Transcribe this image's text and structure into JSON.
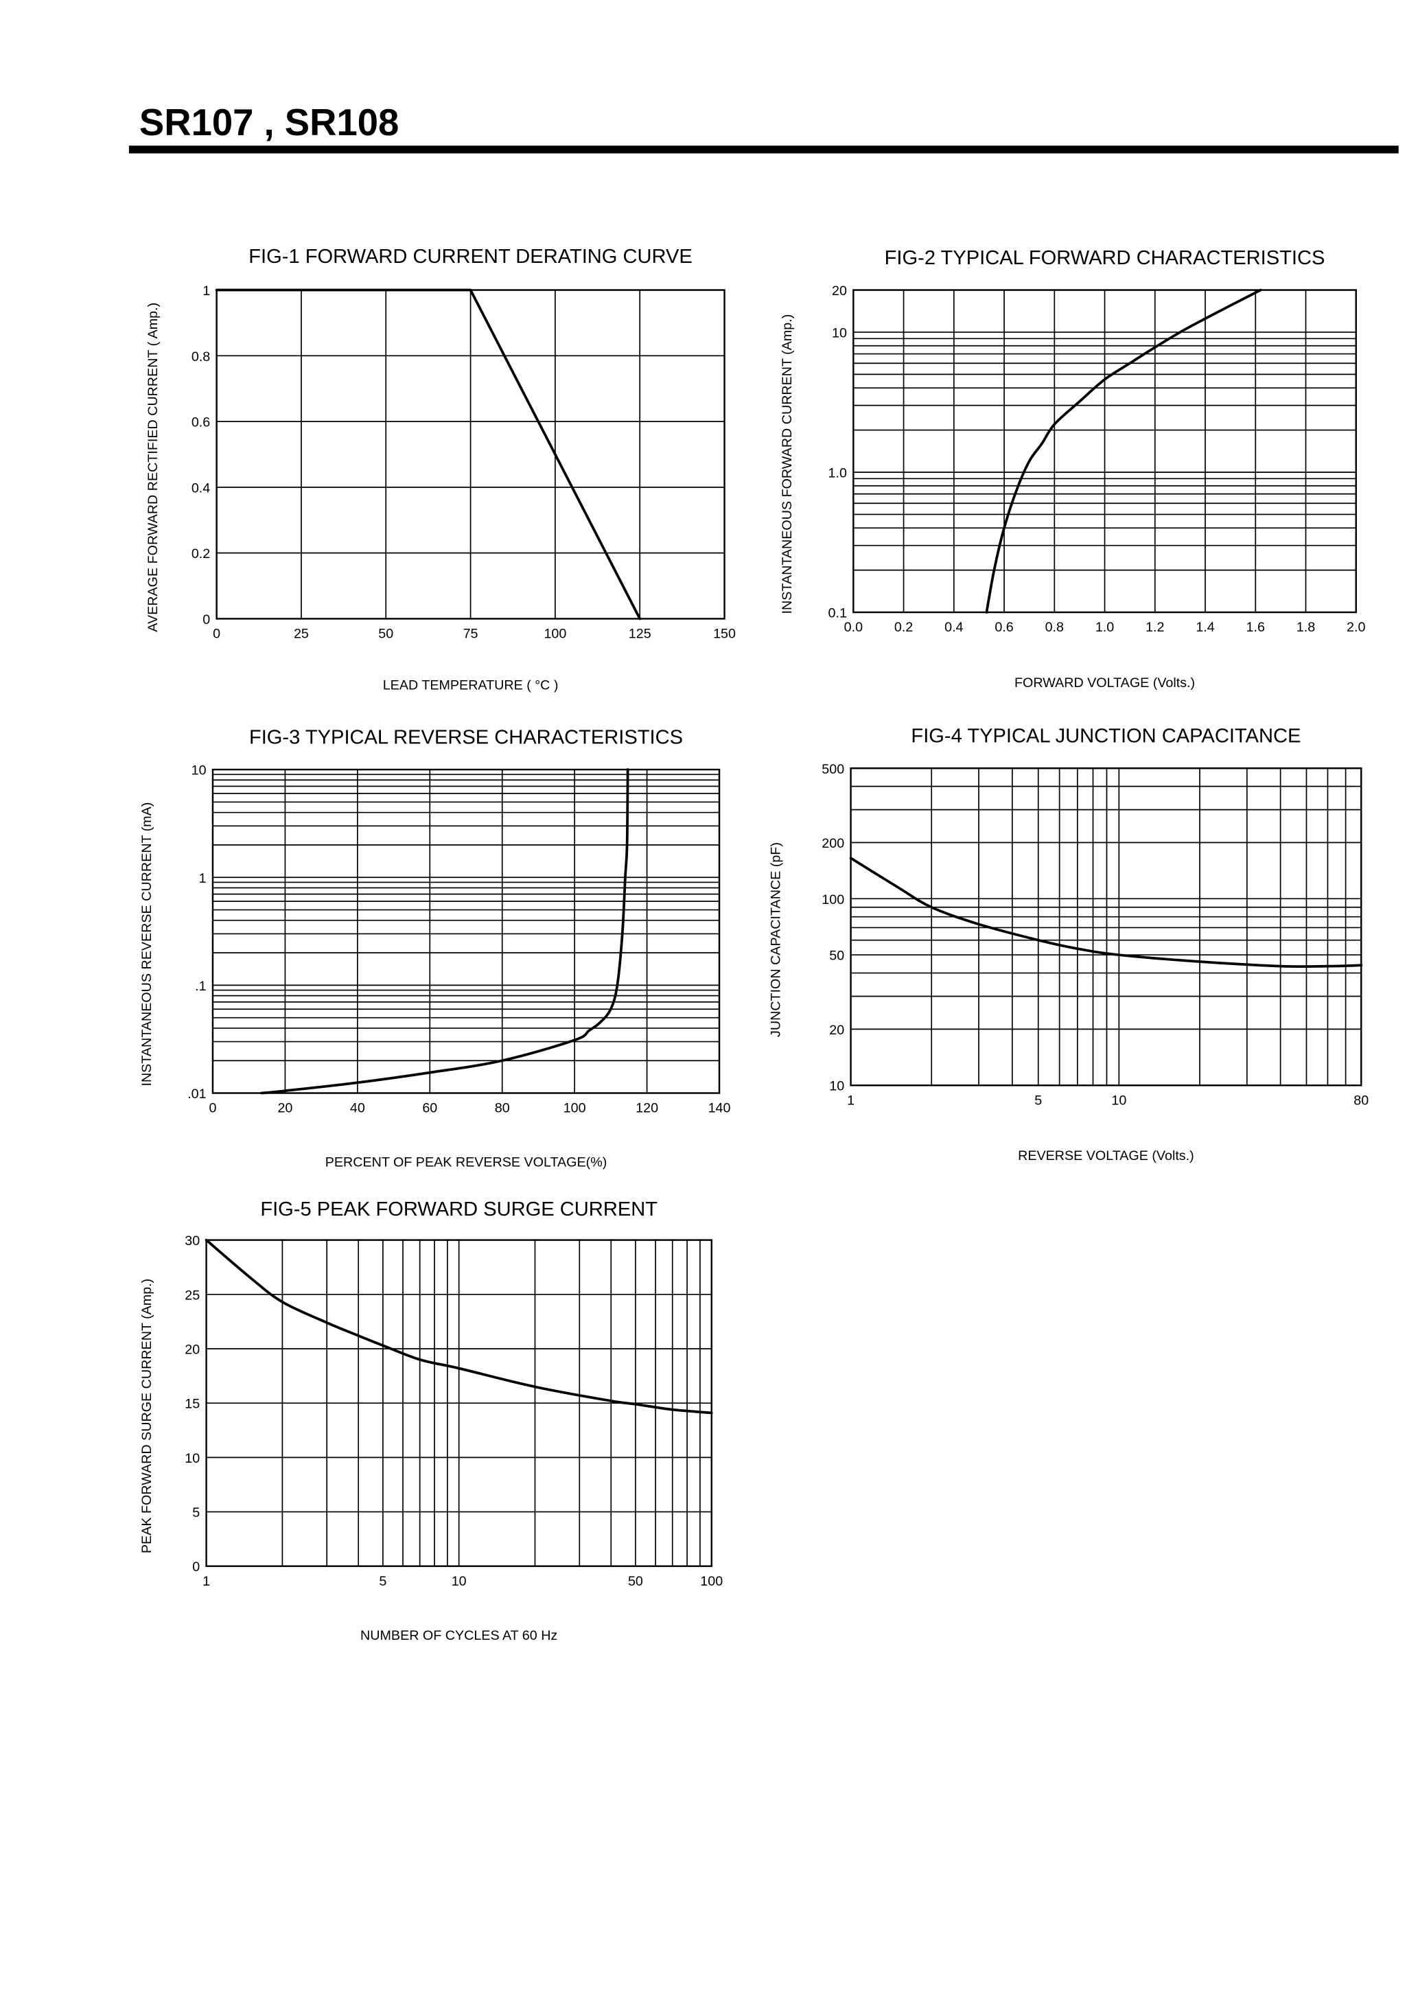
{
  "header": {
    "title": "SR107 , SR108"
  },
  "chart_data": [
    {
      "type": "line",
      "title": "FIG-1 FORWARD CURRENT DERATING CURVE",
      "xlabel": "LEAD TEMPERATURE ( °C )",
      "ylabel": "AVERAGE FORWARD RECTIFIED CURRENT ( Amp.)",
      "xscale": "linear",
      "yscale": "linear",
      "xlim": [
        0,
        150
      ],
      "ylim": [
        0,
        1
      ],
      "grid": true,
      "xgrid": [
        25,
        50,
        75,
        100,
        125
      ],
      "ygrid": [
        0.2,
        0.4,
        0.6,
        0.8
      ],
      "xticks": [
        {
          "v": 0,
          "label": "0"
        },
        {
          "v": 25,
          "label": "25"
        },
        {
          "v": 50,
          "label": "50"
        },
        {
          "v": 75,
          "label": "75"
        },
        {
          "v": 100,
          "label": "100"
        },
        {
          "v": 125,
          "label": "125"
        },
        {
          "v": 150,
          "label": "150"
        }
      ],
      "yticks": [
        {
          "v": 0,
          "label": "0"
        },
        {
          "v": 0.2,
          "label": "0.2"
        },
        {
          "v": 0.4,
          "label": "0.4"
        },
        {
          "v": 0.6,
          "label": "0.6"
        },
        {
          "v": 0.8,
          "label": "0.8"
        },
        {
          "v": 1,
          "label": "1"
        }
      ],
      "x": [
        0,
        75,
        125
      ],
      "y": [
        1,
        1,
        0
      ]
    },
    {
      "type": "line",
      "title": "FIG-2 TYPICAL FORWARD CHARACTERISTICS",
      "xlabel": "FORWARD VOLTAGE (Volts.)",
      "ylabel": "INSTANTANEOUS FORWARD CURRENT (Amp.)",
      "xscale": "linear",
      "yscale": "log",
      "xlim": [
        0,
        2.0
      ],
      "ylim": [
        0.1,
        20
      ],
      "grid": true,
      "xgrid": [
        0.2,
        0.4,
        0.6,
        0.8,
        1.0,
        1.2,
        1.4,
        1.6,
        1.8
      ],
      "ygrid": [
        0.2,
        0.3,
        0.4,
        0.5,
        0.6,
        0.7,
        0.8,
        0.9,
        1,
        2,
        3,
        4,
        5,
        6,
        7,
        8,
        9,
        10
      ],
      "xticks": [
        {
          "v": 0,
          "label": "0.0"
        },
        {
          "v": 0.2,
          "label": "0.2"
        },
        {
          "v": 0.4,
          "label": "0.4"
        },
        {
          "v": 0.6,
          "label": "0.6"
        },
        {
          "v": 0.8,
          "label": "0.8"
        },
        {
          "v": 1.0,
          "label": "1.0"
        },
        {
          "v": 1.2,
          "label": "1.2"
        },
        {
          "v": 1.4,
          "label": "1.4"
        },
        {
          "v": 1.6,
          "label": "1.6"
        },
        {
          "v": 1.8,
          "label": "1.8"
        },
        {
          "v": 2.0,
          "label": "2.0"
        }
      ],
      "yticks": [
        {
          "v": 0.1,
          "label": "0.1"
        },
        {
          "v": 1,
          "label": "1.0"
        },
        {
          "v": 10,
          "label": "10"
        },
        {
          "v": 20,
          "label": "20"
        }
      ],
      "x": [
        0.53,
        0.56,
        0.6,
        0.65,
        0.7,
        0.75,
        0.8,
        0.9,
        1.0,
        1.1,
        1.2,
        1.3,
        1.4,
        1.5,
        1.62
      ],
      "y": [
        0.1,
        0.2,
        0.4,
        0.75,
        1.2,
        1.6,
        2.2,
        3.2,
        4.6,
        6.0,
        7.8,
        10,
        12.5,
        15.5,
        20
      ]
    },
    {
      "type": "line",
      "title": "FIG-3 TYPICAL REVERSE CHARACTERISTICS",
      "xlabel": "PERCENT OF PEAK REVERSE VOLTAGE(%)",
      "ylabel": "INSTANTANEOUS REVERSE CURRENT (mA)",
      "xscale": "linear",
      "yscale": "log",
      "xlim": [
        0,
        140
      ],
      "ylim": [
        0.01,
        10
      ],
      "grid": true,
      "xgrid": [
        20,
        40,
        60,
        80,
        100,
        120
      ],
      "ygrid": [
        0.02,
        0.03,
        0.04,
        0.05,
        0.06,
        0.07,
        0.08,
        0.09,
        0.1,
        0.2,
        0.3,
        0.4,
        0.5,
        0.6,
        0.7,
        0.8,
        0.9,
        1,
        2,
        3,
        4,
        5,
        6,
        7,
        8,
        9
      ],
      "xticks": [
        {
          "v": 0,
          "label": "0"
        },
        {
          "v": 20,
          "label": "20"
        },
        {
          "v": 40,
          "label": "40"
        },
        {
          "v": 60,
          "label": "60"
        },
        {
          "v": 80,
          "label": "80"
        },
        {
          "v": 100,
          "label": "100"
        },
        {
          "v": 120,
          "label": "120"
        },
        {
          "v": 140,
          "label": "140"
        }
      ],
      "yticks": [
        {
          "v": 0.01,
          "label": ".01"
        },
        {
          "v": 0.1,
          "label": ".1"
        },
        {
          "v": 1,
          "label": "1"
        },
        {
          "v": 10,
          "label": "10"
        }
      ],
      "x": [
        13.5,
        20,
        40,
        60,
        80,
        100,
        104,
        107,
        110,
        111.8,
        113.2,
        114,
        114.5,
        114.7
      ],
      "y": [
        0.01,
        0.0105,
        0.0125,
        0.0155,
        0.02,
        0.031,
        0.038,
        0.045,
        0.06,
        0.1,
        0.3,
        1,
        2,
        10
      ]
    },
    {
      "type": "line",
      "title": "FIG-4 TYPICAL JUNCTION CAPACITANCE",
      "xlabel": "REVERSE VOLTAGE (Volts.)",
      "ylabel": "JUNCTION CAPACITANCE (pF)",
      "xscale": "log",
      "yscale": "log",
      "xlim": [
        1,
        80
      ],
      "ylim": [
        10,
        500
      ],
      "grid": true,
      "xgrid": [
        2,
        3,
        4,
        5,
        6,
        7,
        8,
        9,
        10,
        20,
        30,
        40,
        50,
        60,
        70
      ],
      "ygrid": [
        20,
        30,
        40,
        50,
        60,
        70,
        80,
        90,
        100,
        200,
        300,
        400
      ],
      "xticks": [
        {
          "v": 1,
          "label": "1"
        },
        {
          "v": 5,
          "label": "5"
        },
        {
          "v": 10,
          "label": "10"
        },
        {
          "v": 80,
          "label": "80"
        }
      ],
      "yticks": [
        {
          "v": 10,
          "label": "10"
        },
        {
          "v": 20,
          "label": "20"
        },
        {
          "v": 50,
          "label": "50"
        },
        {
          "v": 100,
          "label": "100"
        },
        {
          "v": 200,
          "label": "200"
        },
        {
          "v": 500,
          "label": "500"
        }
      ],
      "x": [
        1,
        1.5,
        2,
        3,
        5,
        7,
        10,
        20,
        40,
        60,
        80
      ],
      "y": [
        165,
        115,
        90,
        73,
        60,
        54,
        50,
        46,
        43.5,
        43.5,
        44
      ]
    },
    {
      "type": "line",
      "title": "FIG-5 PEAK FORWARD SURGE CURRENT",
      "xlabel": "NUMBER OF CYCLES AT 60 Hz",
      "ylabel": "PEAK FORWARD SURGE CURRENT (Amp.)",
      "xscale": "log",
      "yscale": "linear",
      "xlim": [
        1,
        100
      ],
      "ylim": [
        0,
        30
      ],
      "grid": true,
      "xgrid": [
        2,
        3,
        4,
        5,
        6,
        7,
        8,
        9,
        10,
        20,
        30,
        40,
        50,
        60,
        70,
        80,
        90
      ],
      "ygrid": [
        5,
        10,
        15,
        20,
        25
      ],
      "xticks": [
        {
          "v": 1,
          "label": "1"
        },
        {
          "v": 5,
          "label": "5"
        },
        {
          "v": 10,
          "label": "10"
        },
        {
          "v": 50,
          "label": "50"
        },
        {
          "v": 100,
          "label": "100"
        }
      ],
      "yticks": [
        {
          "v": 0,
          "label": "0"
        },
        {
          "v": 5,
          "label": "5"
        },
        {
          "v": 10,
          "label": "10"
        },
        {
          "v": 15,
          "label": "15"
        },
        {
          "v": 20,
          "label": "20"
        },
        {
          "v": 25,
          "label": "25"
        },
        {
          "v": 30,
          "label": "30"
        }
      ],
      "x": [
        1,
        1.5,
        2,
        3,
        4,
        5,
        7,
        10,
        20,
        40,
        50,
        70,
        100
      ],
      "y": [
        30,
        26.5,
        24.3,
        22.4,
        21.2,
        20.3,
        19.0,
        18.2,
        16.5,
        15.2,
        14.9,
        14.4,
        14.1
      ]
    }
  ]
}
